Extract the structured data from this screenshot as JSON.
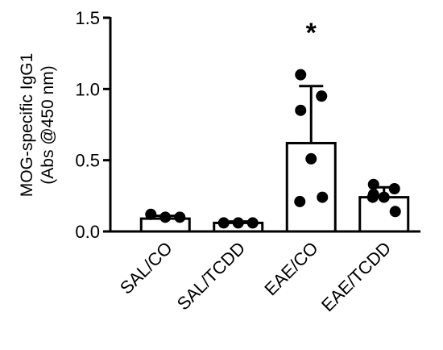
{
  "chart_data": {
    "type": "bar",
    "ylabel": [
      "MOG-specific IgG1",
      "(Abs @450 nm)"
    ],
    "categories": [
      "SAL/CO",
      "SAL/TCDD",
      "EAE/CO",
      "EAE/TCDD"
    ],
    "values": [
      0.09,
      0.06,
      0.62,
      0.24
    ],
    "errors": [
      0.02,
      0.01,
      0.4,
      0.07
    ],
    "points": [
      [
        0.12,
        0.1,
        0.1
      ],
      [
        0.06,
        0.06,
        0.06
      ],
      [
        1.1,
        0.95,
        0.85,
        0.51,
        0.21,
        0.24
      ],
      [
        0.33,
        0.3,
        0.26,
        0.24,
        0.24,
        0.14
      ]
    ],
    "annotations": [
      {
        "text": "*",
        "category": 2
      }
    ],
    "color": "#ffffff",
    "edge_color": "#000000",
    "point_color": "#000000",
    "ylim": [
      0,
      1.5
    ],
    "yticks": [
      {
        "value": 0,
        "label": "0.0"
      },
      0.5,
      {
        "value": 1,
        "label": "1.0"
      },
      1.5
    ]
  }
}
